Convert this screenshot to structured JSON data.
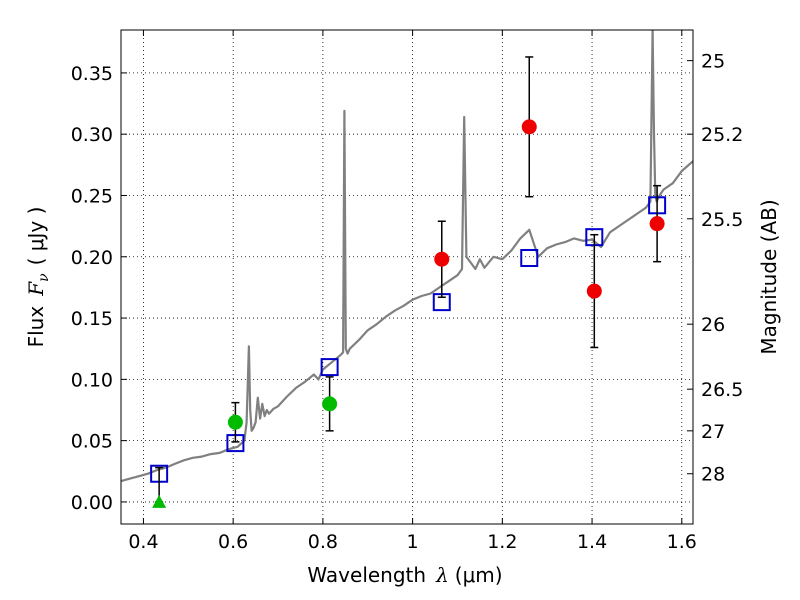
{
  "chart_data": {
    "type": "scatter",
    "xlabel": "Wavelength",
    "xlabel_symbol": "λ",
    "xlabel_unit": "(μm)",
    "ylabel": "Flux",
    "ylabel_symbol": "F",
    "ylabel_subscript": "ν",
    "ylabel_unit": "( μJy )",
    "ylabel_right": "Magnitude (AB)",
    "xlim": [
      0.35,
      1.625
    ],
    "ylim": [
      -0.018,
      0.385
    ],
    "grid": true,
    "x_ticks": [
      {
        "value": 0.4,
        "label": "0.4"
      },
      {
        "value": 0.6,
        "label": "0.6"
      },
      {
        "value": 0.8,
        "label": "0.8"
      },
      {
        "value": 1.0,
        "label": "1"
      },
      {
        "value": 1.2,
        "label": "1.2"
      },
      {
        "value": 1.4,
        "label": "1.4"
      },
      {
        "value": 1.6,
        "label": "1.6"
      }
    ],
    "y_ticks": [
      {
        "value": 0.0,
        "label": "0.00"
      },
      {
        "value": 0.05,
        "label": "0.05"
      },
      {
        "value": 0.1,
        "label": "0.10"
      },
      {
        "value": 0.15,
        "label": "0.15"
      },
      {
        "value": 0.2,
        "label": "0.20"
      },
      {
        "value": 0.25,
        "label": "0.25"
      },
      {
        "value": 0.3,
        "label": "0.30"
      },
      {
        "value": 0.35,
        "label": "0.35"
      }
    ],
    "right_ticks": [
      {
        "flux": 0.36,
        "label": "25"
      },
      {
        "flux": 0.3,
        "label": "25.2"
      },
      {
        "flux": 0.231,
        "label": "25.5"
      },
      {
        "flux": 0.145,
        "label": "26"
      },
      {
        "flux": 0.092,
        "label": "26.5"
      },
      {
        "flux": 0.058,
        "label": "27"
      },
      {
        "flux": 0.023,
        "label": "28"
      }
    ],
    "series": [
      {
        "kind": "line",
        "color": "#808080",
        "x": [
          0.35,
          0.37,
          0.39,
          0.41,
          0.43,
          0.45,
          0.47,
          0.49,
          0.51,
          0.53,
          0.55,
          0.57,
          0.59,
          0.61,
          0.625,
          0.63,
          0.635,
          0.638,
          0.641,
          0.645,
          0.65,
          0.655,
          0.66,
          0.665,
          0.67,
          0.675,
          0.68,
          0.69,
          0.7,
          0.72,
          0.74,
          0.76,
          0.78,
          0.79,
          0.8,
          0.82,
          0.84,
          0.845,
          0.848,
          0.851,
          0.855,
          0.86,
          0.88,
          0.9,
          0.92,
          0.94,
          0.96,
          0.98,
          1.0,
          1.02,
          1.04,
          1.06,
          1.08,
          1.1,
          1.11,
          1.115,
          1.12,
          1.13,
          1.14,
          1.15,
          1.16,
          1.18,
          1.2,
          1.22,
          1.24,
          1.26,
          1.28,
          1.3,
          1.32,
          1.34,
          1.36,
          1.38,
          1.4,
          1.42,
          1.44,
          1.46,
          1.48,
          1.5,
          1.52,
          1.53,
          1.535,
          1.538,
          1.541,
          1.544,
          1.55,
          1.56,
          1.58,
          1.6,
          1.625
        ],
        "y": [
          0.017,
          0.019,
          0.021,
          0.023,
          0.026,
          0.028,
          0.031,
          0.034,
          0.036,
          0.037,
          0.039,
          0.04,
          0.043,
          0.045,
          0.05,
          0.065,
          0.127,
          0.075,
          0.058,
          0.06,
          0.065,
          0.085,
          0.068,
          0.08,
          0.07,
          0.075,
          0.072,
          0.076,
          0.078,
          0.086,
          0.093,
          0.098,
          0.104,
          0.1,
          0.108,
          0.114,
          0.12,
          0.122,
          0.319,
          0.125,
          0.121,
          0.125,
          0.132,
          0.14,
          0.145,
          0.151,
          0.156,
          0.16,
          0.165,
          0.168,
          0.17,
          0.175,
          0.18,
          0.185,
          0.19,
          0.314,
          0.2,
          0.195,
          0.19,
          0.198,
          0.191,
          0.2,
          0.198,
          0.205,
          0.215,
          0.222,
          0.2,
          0.207,
          0.21,
          0.212,
          0.215,
          0.213,
          0.214,
          0.208,
          0.22,
          0.225,
          0.23,
          0.235,
          0.24,
          0.245,
          0.385,
          0.3,
          0.25,
          0.245,
          0.25,
          0.255,
          0.26,
          0.27,
          0.278
        ]
      },
      {
        "kind": "square",
        "color": "#0000cc",
        "x": [
          0.435,
          0.605,
          0.815,
          1.065,
          1.26,
          1.405,
          1.545
        ],
        "y": [
          0.023,
          0.048,
          0.11,
          0.163,
          0.199,
          0.216,
          0.242
        ]
      },
      {
        "kind": "circle",
        "color": "#ee0000",
        "x": [
          1.065,
          1.26,
          1.405,
          1.545
        ],
        "y": [
          0.198,
          0.306,
          0.172,
          0.227
        ],
        "err": [
          0.031,
          0.057,
          0.046,
          0.031
        ]
      },
      {
        "kind": "circle",
        "color": "#00bb00",
        "x": [
          0.605,
          0.815
        ],
        "y": [
          0.065,
          0.08
        ],
        "err": [
          0.016,
          0.022
        ]
      },
      {
        "kind": "triangle",
        "color": "#00bb00",
        "x": [
          0.435
        ],
        "y": [
          0.0
        ],
        "err_up": [
          0.028
        ]
      }
    ]
  }
}
